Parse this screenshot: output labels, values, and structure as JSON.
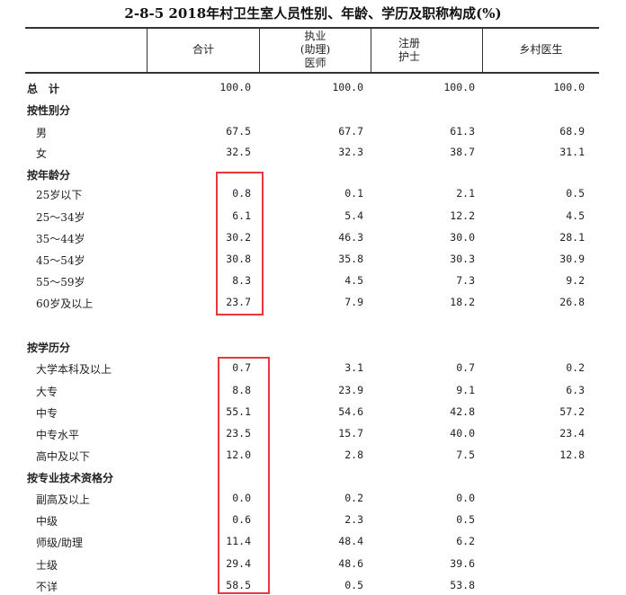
{
  "title": "2-8-5   2018年村卫生室人员性别、年龄、学历及职称构成(%)",
  "columns": [
    "合计",
    "执业\n(助理)\n医师",
    "注册\n护士",
    "乡村医生"
  ],
  "rows": [
    {
      "label": "总　计",
      "type": "total",
      "values": [
        "100.0",
        "100.0",
        "100.0",
        "100.0"
      ]
    },
    {
      "label": "按性别分",
      "type": "section",
      "values": []
    },
    {
      "label": "男",
      "type": "item",
      "values": [
        "67.5",
        "67.7",
        "61.3",
        "68.9"
      ]
    },
    {
      "label": "女",
      "type": "item",
      "values": [
        "32.5",
        "32.3",
        "38.7",
        "31.1"
      ]
    },
    {
      "label": "按年龄分",
      "type": "section",
      "values": []
    },
    {
      "label": "25岁以下",
      "type": "item",
      "values": [
        "0.8",
        "0.1",
        "2.1",
        "0.5"
      ]
    },
    {
      "label": "25～34岁",
      "type": "item",
      "values": [
        "6.1",
        "5.4",
        "12.2",
        "4.5"
      ]
    },
    {
      "label": "35～44岁",
      "type": "item",
      "values": [
        "30.2",
        "46.3",
        "30.0",
        "28.1"
      ]
    },
    {
      "label": "45～54岁",
      "type": "item",
      "values": [
        "30.8",
        "35.8",
        "30.3",
        "30.9"
      ]
    },
    {
      "label": "55～59岁",
      "type": "item",
      "values": [
        "8.3",
        "4.5",
        "7.3",
        "9.2"
      ]
    },
    {
      "label": "60岁及以上",
      "type": "item",
      "values": [
        "23.7",
        "7.9",
        "18.2",
        "26.8"
      ]
    },
    {
      "label": "按学历分",
      "type": "section",
      "values": []
    },
    {
      "label": "大学本科及以上",
      "type": "item",
      "values": [
        "0.7",
        "3.1",
        "0.7",
        "0.2"
      ]
    },
    {
      "label": "大专",
      "type": "item",
      "values": [
        "8.8",
        "23.9",
        "9.1",
        "6.3"
      ]
    },
    {
      "label": "中专",
      "type": "item",
      "values": [
        "55.1",
        "54.6",
        "42.8",
        "57.2"
      ]
    },
    {
      "label": "中专水平",
      "type": "item",
      "values": [
        "23.5",
        "15.7",
        "40.0",
        "23.4"
      ]
    },
    {
      "label": "高中及以下",
      "type": "item",
      "values": [
        "12.0",
        "2.8",
        "7.5",
        "12.8"
      ]
    },
    {
      "label": "按专业技术资格分",
      "type": "section",
      "values": []
    },
    {
      "label": "副高及以上",
      "type": "item",
      "values": [
        "0.0",
        "0.2",
        "0.0"
      ]
    },
    {
      "label": "中级",
      "type": "item",
      "values": [
        "0.6",
        "2.3",
        "0.5"
      ]
    },
    {
      "label": "师级/助理",
      "type": "item",
      "values": [
        "11.4",
        "48.4",
        "6.2"
      ]
    },
    {
      "label": "士级",
      "type": "item",
      "values": [
        "29.4",
        "48.6",
        "39.6"
      ]
    },
    {
      "label": "不详",
      "type": "item",
      "values": [
        "58.5",
        "0.5",
        "53.8"
      ]
    }
  ],
  "highlight_color": "#e8383d"
}
